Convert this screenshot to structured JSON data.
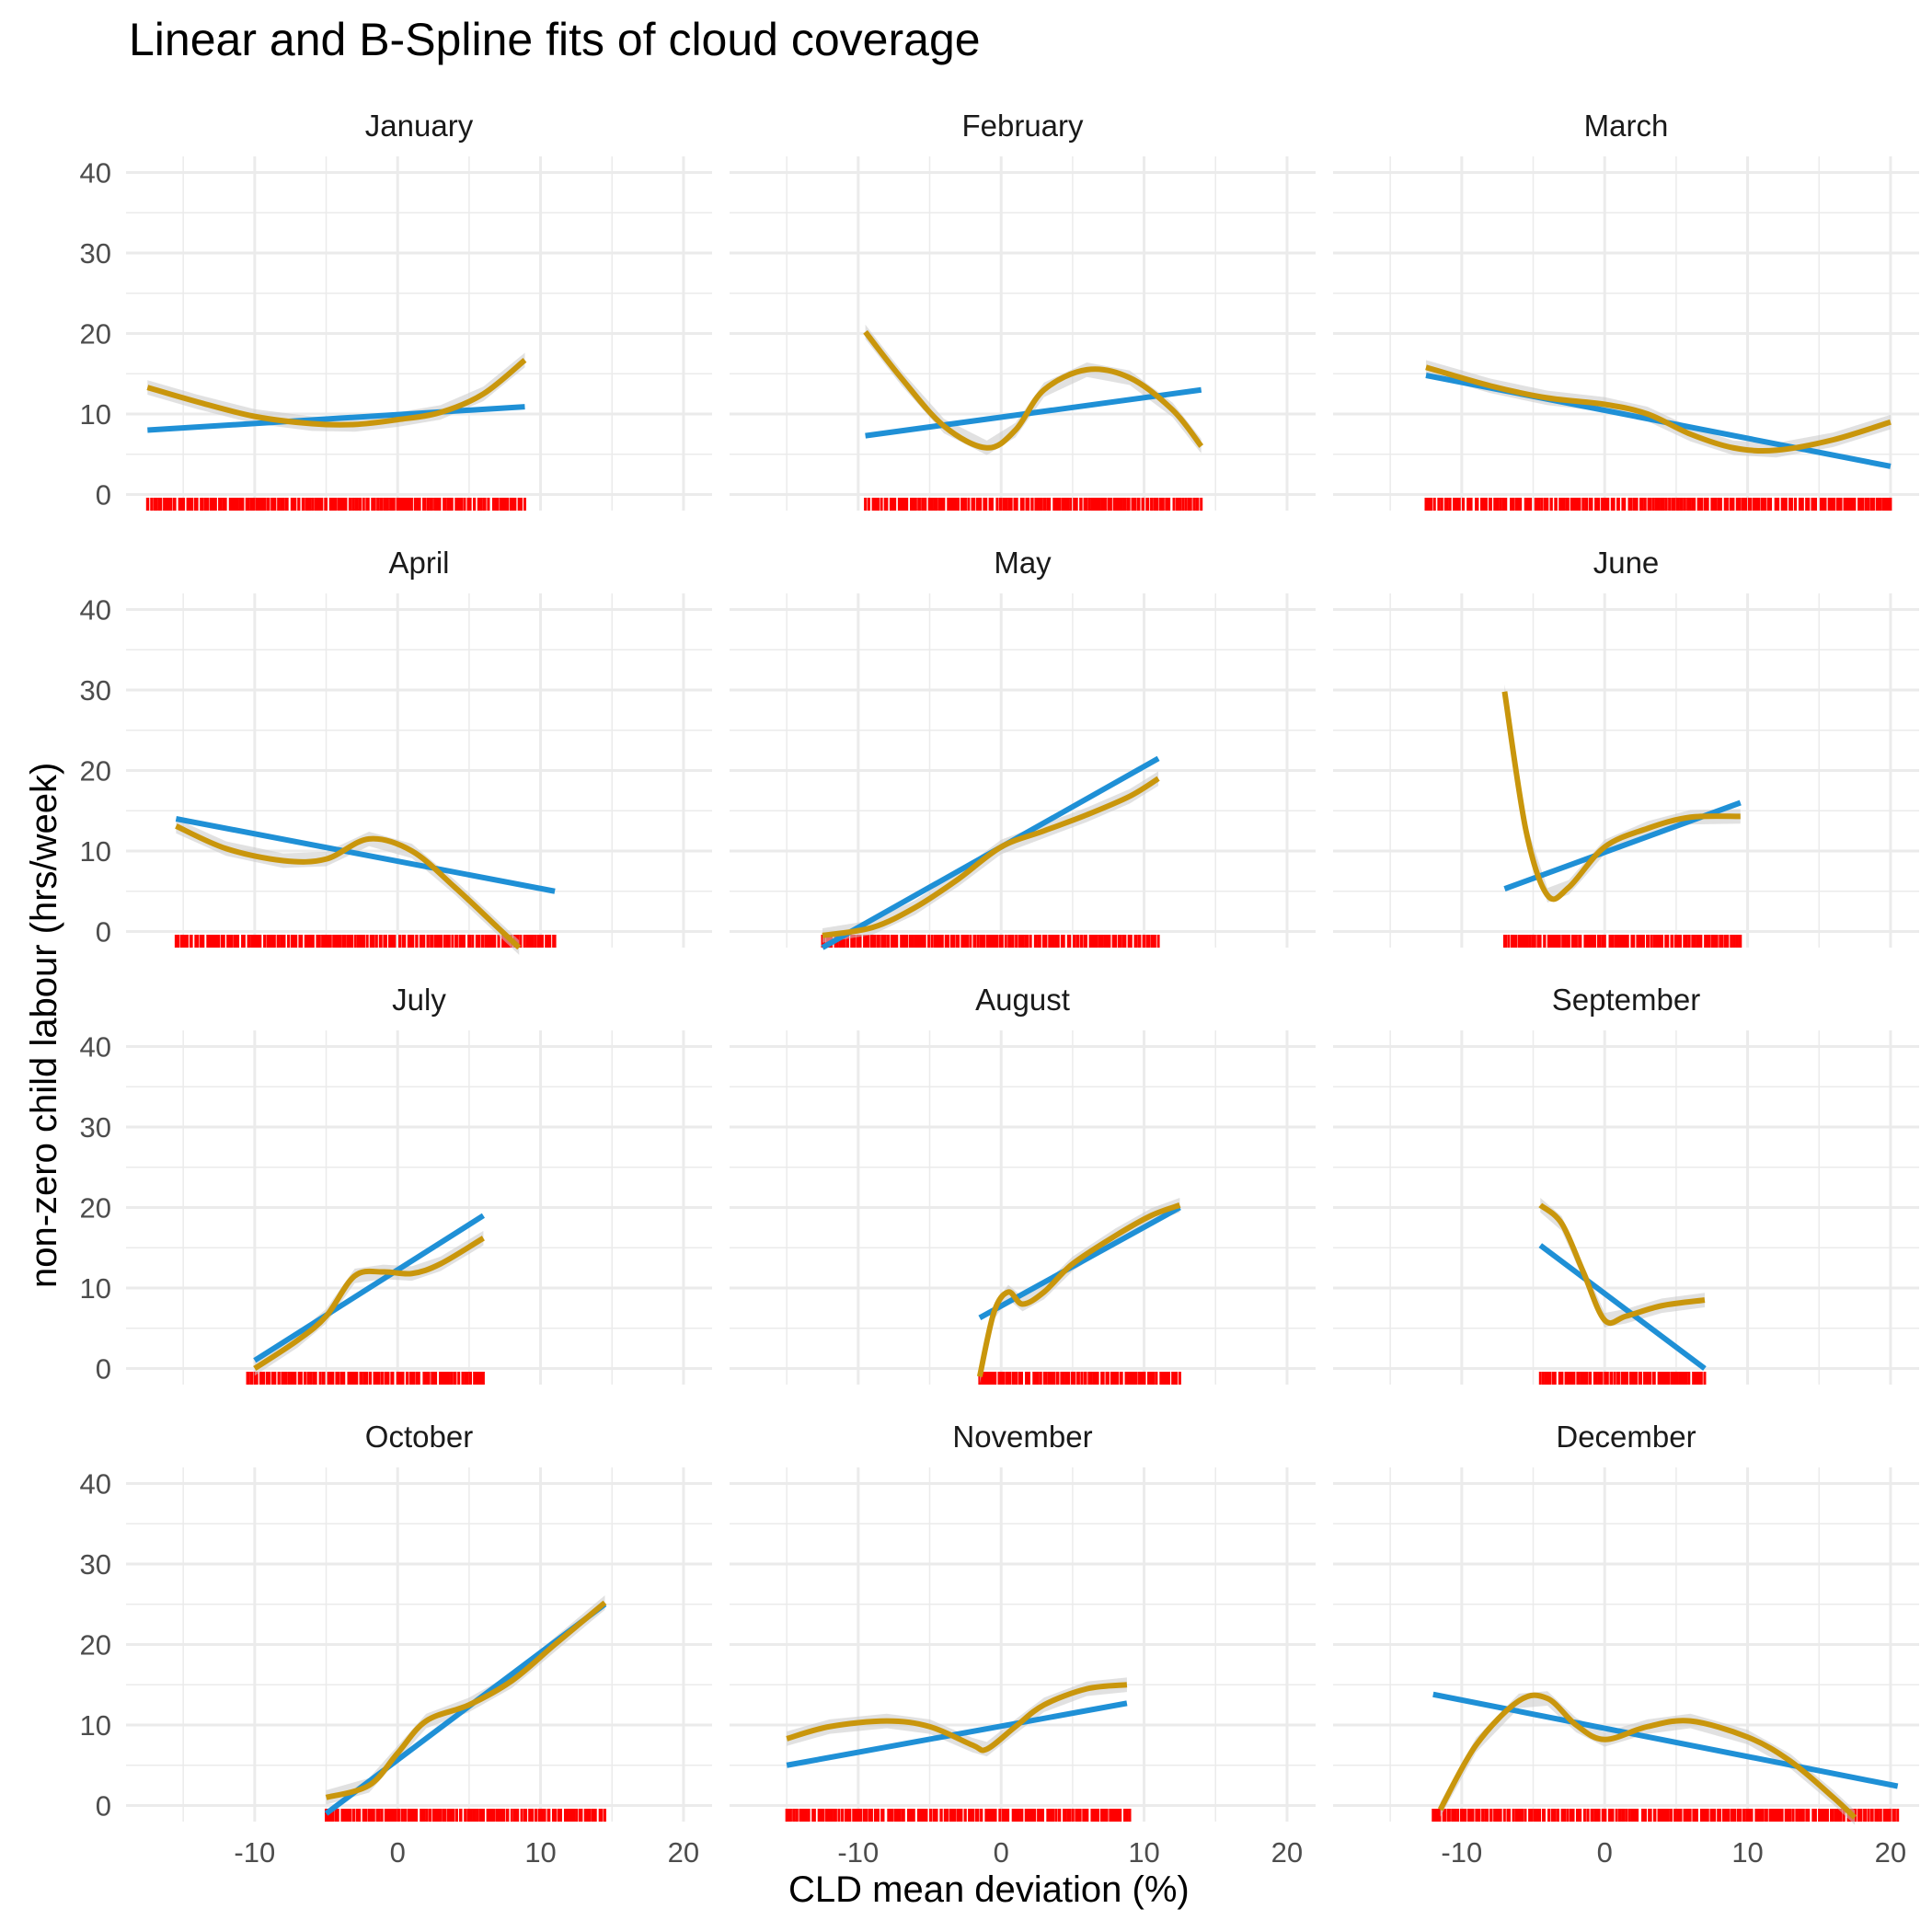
{
  "title": "Linear and B-Spline fits of cloud coverage",
  "xlabel": "CLD mean deviation (%)",
  "ylabel": "non-zero child labour (hrs/week)",
  "colors": {
    "linear": "#1f90d6",
    "spline": "#c9960c",
    "band": "#c8c8c8",
    "rug": "#ff0000",
    "grid": "#ebebeb"
  },
  "chart_data": {
    "type": "line",
    "facet_layout": "3 columns x 4 rows",
    "xlim": [
      -19,
      22
    ],
    "ylim": [
      -2,
      42
    ],
    "x_ticks": [
      -10,
      0,
      10,
      20
    ],
    "y_ticks": [
      0,
      10,
      20,
      30,
      40
    ],
    "grid": true,
    "legend": "none",
    "series_types": [
      "linear fit",
      "B-spline fit with confidence band",
      "rug of observations"
    ],
    "panels": [
      {
        "month": "January",
        "linear": [
          [
            -17.5,
            8
          ],
          [
            8.9,
            10.9
          ]
        ],
        "spline": [
          [
            -17.5,
            13.3
          ],
          [
            -14,
            11.5
          ],
          [
            -10,
            9.7
          ],
          [
            -6,
            8.8
          ],
          [
            -3,
            8.7
          ],
          [
            0,
            9.3
          ],
          [
            3,
            10.2
          ],
          [
            6,
            12.5
          ],
          [
            8.9,
            16.7
          ]
        ],
        "rug": [
          -17.5,
          8.9
        ]
      },
      {
        "month": "February",
        "linear": [
          [
            -9.5,
            7.3
          ],
          [
            14,
            13
          ]
        ],
        "spline": [
          [
            -9.5,
            20.2
          ],
          [
            -7,
            14.5
          ],
          [
            -4,
            8.5
          ],
          [
            -1,
            5.8
          ],
          [
            1,
            8
          ],
          [
            3,
            13
          ],
          [
            6,
            15.5
          ],
          [
            9,
            14.5
          ],
          [
            12,
            10.5
          ],
          [
            14,
            6
          ]
        ],
        "rug": [
          -9.5,
          14
        ]
      },
      {
        "month": "March",
        "linear": [
          [
            -12.5,
            14.8
          ],
          [
            20,
            3.5
          ]
        ],
        "spline": [
          [
            -12.5,
            15.8
          ],
          [
            -8,
            13.5
          ],
          [
            -4,
            12
          ],
          [
            0,
            11.2
          ],
          [
            3,
            10
          ],
          [
            6,
            7.5
          ],
          [
            9,
            5.8
          ],
          [
            12,
            5.5
          ],
          [
            16,
            6.8
          ],
          [
            20,
            9
          ]
        ],
        "rug": [
          -12.5,
          20
        ]
      },
      {
        "month": "April",
        "linear": [
          [
            -15.5,
            14
          ],
          [
            11,
            5
          ]
        ],
        "spline": [
          [
            -15.5,
            13.1
          ],
          [
            -12,
            10.3
          ],
          [
            -8,
            8.8
          ],
          [
            -5,
            9
          ],
          [
            -2,
            11.5
          ],
          [
            1,
            10
          ],
          [
            4,
            5.5
          ],
          [
            7,
            0.5
          ],
          [
            8.5,
            -2
          ]
        ],
        "rug": [
          -15.5,
          11
        ]
      },
      {
        "month": "May",
        "linear": [
          [
            -12.5,
            -2
          ],
          [
            11,
            21.5
          ]
        ],
        "spline": [
          [
            -12.5,
            -0.5
          ],
          [
            -9,
            0.5
          ],
          [
            -6,
            3
          ],
          [
            -3,
            6.5
          ],
          [
            0,
            10.5
          ],
          [
            3,
            12.5
          ],
          [
            6,
            14.5
          ],
          [
            9,
            16.8
          ],
          [
            11,
            19
          ]
        ],
        "rug": [
          -12.5,
          11
        ]
      },
      {
        "month": "June",
        "linear": [
          [
            -7,
            5.3
          ],
          [
            9.5,
            16
          ]
        ],
        "spline": [
          [
            -7,
            29.8
          ],
          [
            -5.5,
            12.5
          ],
          [
            -4,
            4.5
          ],
          [
            -2.5,
            5.5
          ],
          [
            0,
            10.5
          ],
          [
            3,
            12.8
          ],
          [
            6,
            14.2
          ],
          [
            9.5,
            14.3
          ]
        ],
        "rug": [
          -7,
          9.5
        ]
      },
      {
        "month": "July",
        "linear": [
          [
            -10,
            1
          ],
          [
            6,
            19
          ]
        ],
        "spline": [
          [
            -10,
            0
          ],
          [
            -7,
            3.5
          ],
          [
            -5,
            6.5
          ],
          [
            -3,
            11.5
          ],
          [
            -1,
            12
          ],
          [
            1,
            11.8
          ],
          [
            3,
            13
          ],
          [
            6,
            16.2
          ]
        ],
        "rug": [
          -10.5,
          6
        ]
      },
      {
        "month": "August",
        "linear": [
          [
            -1.5,
            6.3
          ],
          [
            12.5,
            20
          ]
        ],
        "spline": [
          [
            -1.5,
            -1
          ],
          [
            -0.5,
            7
          ],
          [
            0.5,
            9.5
          ],
          [
            1.5,
            8
          ],
          [
            3,
            9.5
          ],
          [
            5,
            13
          ],
          [
            8,
            16.5
          ],
          [
            10.5,
            19
          ],
          [
            12.5,
            20.3
          ]
        ],
        "rug": [
          -1.5,
          12.5
        ]
      },
      {
        "month": "September",
        "linear": [
          [
            -4.5,
            15.3
          ],
          [
            7,
            0
          ]
        ],
        "spline": [
          [
            -4.5,
            20.3
          ],
          [
            -3,
            18
          ],
          [
            -1.5,
            12
          ],
          [
            0,
            6
          ],
          [
            1.5,
            6.5
          ],
          [
            4,
            7.8
          ],
          [
            7,
            8.5
          ]
        ],
        "rug": [
          -4.5,
          7
        ]
      },
      {
        "month": "October",
        "linear": [
          [
            -5,
            -1
          ],
          [
            14.5,
            25
          ]
        ],
        "spline": [
          [
            -5,
            1
          ],
          [
            -2,
            2.5
          ],
          [
            0,
            6.5
          ],
          [
            2,
            10.5
          ],
          [
            5,
            12.5
          ],
          [
            8,
            15.5
          ],
          [
            11,
            20
          ],
          [
            14.5,
            25.2
          ]
        ],
        "rug": [
          -5,
          14.5
        ]
      },
      {
        "month": "November",
        "linear": [
          [
            -15,
            5
          ],
          [
            8.8,
            12.7
          ]
        ],
        "spline": [
          [
            -15,
            8.3
          ],
          [
            -12,
            9.8
          ],
          [
            -8,
            10.5
          ],
          [
            -5,
            9.8
          ],
          [
            -2,
            7.5
          ],
          [
            -1,
            7
          ],
          [
            1,
            9.8
          ],
          [
            3,
            12.5
          ],
          [
            6,
            14.5
          ],
          [
            8.8,
            15
          ]
        ],
        "rug": [
          -15,
          9
        ]
      },
      {
        "month": "December",
        "linear": [
          [
            -12,
            13.8
          ],
          [
            20.5,
            2.4
          ]
        ],
        "spline": [
          [
            -11.5,
            -0.5
          ],
          [
            -9,
            7.5
          ],
          [
            -6,
            13
          ],
          [
            -4,
            13.3
          ],
          [
            -2,
            10
          ],
          [
            0,
            8.2
          ],
          [
            3,
            9.8
          ],
          [
            6,
            10.5
          ],
          [
            10,
            8.5
          ],
          [
            13,
            5.5
          ],
          [
            16,
            1
          ],
          [
            17.5,
            -1.5
          ]
        ],
        "rug": [
          -12,
          20.5
        ]
      }
    ]
  }
}
